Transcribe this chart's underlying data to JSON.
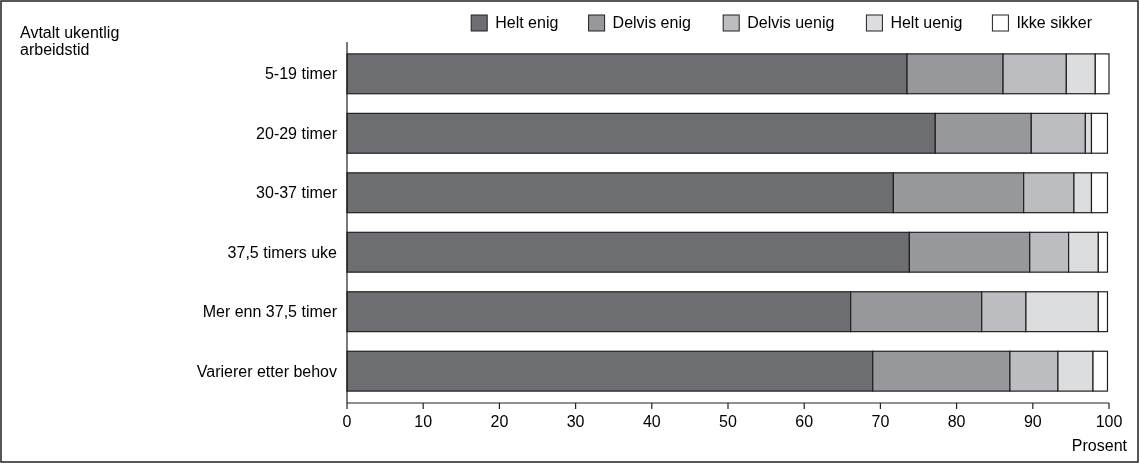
{
  "chart_data": {
    "type": "bar",
    "orientation": "horizontal",
    "stacked": true,
    "ylabel": "Avtalt ukentlig arbeidstid",
    "xlabel": "Prosent",
    "categories": [
      "5-19 timer",
      "20-29 timer",
      "30-37 timer",
      "37,5 timers uke",
      "Mer enn 37,5 timer",
      "Varierer etter behov"
    ],
    "series": [
      {
        "name": "Helt enig",
        "color": "#6d6e71",
        "values": [
          73.5,
          77.2,
          71.7,
          73.8,
          66.1,
          69.0
        ]
      },
      {
        "name": "Delvis enig",
        "color": "#97989b",
        "values": [
          12.6,
          12.6,
          17.1,
          15.8,
          17.2,
          18.0
        ]
      },
      {
        "name": "Delvis uenig",
        "color": "#bcbdc0",
        "values": [
          8.3,
          7.1,
          6.6,
          5.1,
          5.8,
          6.3
        ]
      },
      {
        "name": "Helt uenig",
        "color": "#dcdddf",
        "values": [
          3.8,
          0.8,
          2.3,
          3.9,
          9.5,
          4.6
        ]
      },
      {
        "name": "Ikke sikker",
        "color": "#ffffff",
        "values": [
          1.8,
          2.1,
          2.1,
          1.2,
          1.2,
          1.9
        ]
      }
    ],
    "xlim": [
      0,
      100
    ],
    "xticks": [
      0,
      10,
      20,
      30,
      40,
      50,
      60,
      70,
      80,
      90,
      100
    ],
    "grid": false,
    "legend": "top right"
  }
}
